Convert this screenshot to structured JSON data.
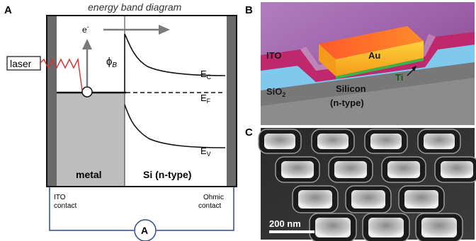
{
  "panels": {
    "a": {
      "label": "A",
      "title": "energy band diagram",
      "laser": "laser",
      "electron": "e",
      "electron_sup": "-",
      "barrier_phi": "ϕ",
      "barrier_sub": "B",
      "ec": "E",
      "ec_sub": "C",
      "ef": "E",
      "ef_sub": "F",
      "ev": "E",
      "ev_sub": "V",
      "metal": "metal",
      "semiconductor": "Si (n-type)",
      "ito_contact_1": "ITO",
      "ito_contact_2": "contact",
      "ohmic_contact_1": "Ohmic",
      "ohmic_contact_2": "contact",
      "ammeter": "A"
    },
    "b": {
      "label": "B",
      "ito": "ITO",
      "au": "Au",
      "ti": "Ti",
      "sio2": "SiO",
      "sio2_sub": "2",
      "silicon": "Silicon",
      "ntype": "(n-type)"
    },
    "c": {
      "label": "C",
      "scale_bar": "200 nm"
    }
  },
  "colors": {
    "laser": "#d93030",
    "arrow": "#7a7a7a",
    "circuit": "#2c4a8a",
    "metal_fill": "#bdbdbd",
    "ito_band": "#c0286e",
    "gold": "#f4a21c",
    "sio2": "#7ec9ec"
  }
}
